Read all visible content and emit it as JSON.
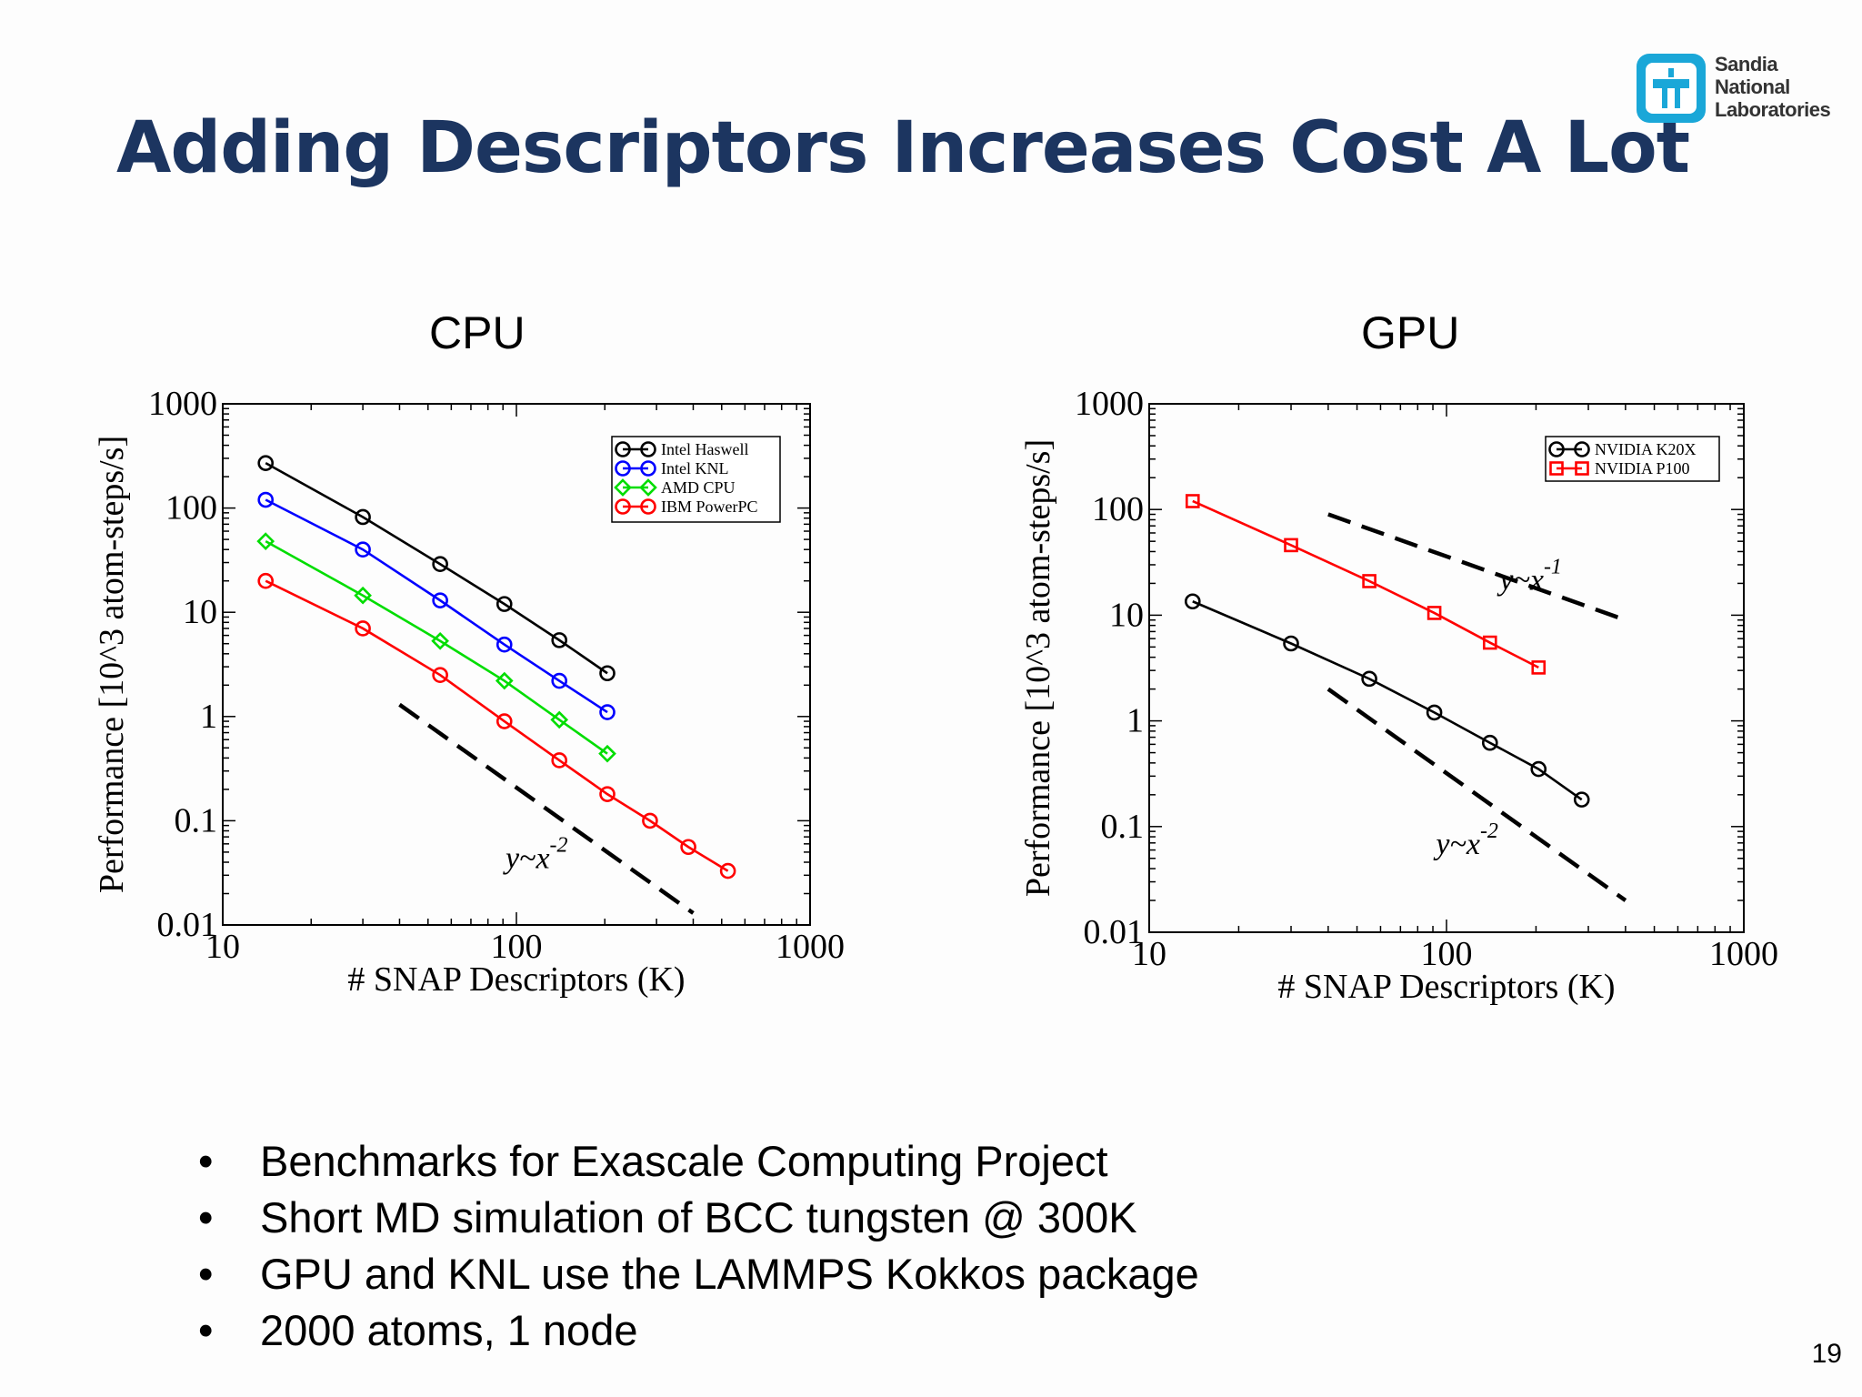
{
  "slide": {
    "title": "Adding Descriptors Increases Cost A Lot",
    "logo": {
      "lines": [
        "Sandia",
        "National",
        "Laboratories"
      ],
      "icon": "sandia-thunderbird-icon",
      "color": "#1aa7d8"
    },
    "page_number": "19",
    "bullets": [
      "Benchmarks for Exascale Computing Project",
      "Short MD simulation of BCC tungsten @ 300K",
      "GPU and KNL use the LAMMPS Kokkos package",
      "2000 atoms, 1 node"
    ]
  },
  "chart_data": [
    {
      "type": "line",
      "panel_title": "CPU",
      "xlabel": "# SNAP Descriptors (K)",
      "ylabel": "Performance [10^3 atom-steps/s]",
      "xscale": "log",
      "yscale": "log",
      "xlim": [
        10,
        1000
      ],
      "ylim": [
        0.01,
        1000
      ],
      "xticks": [
        "10",
        "100",
        "1000"
      ],
      "yticks": [
        "0.01",
        "0.1",
        "1",
        "10",
        "100",
        "1000"
      ],
      "legend_position": "top-right",
      "series": [
        {
          "name": "Intel Haswell",
          "color": "#000000",
          "marker": "circle",
          "x": [
            14,
            30,
            55,
            91,
            140,
            204
          ],
          "y": [
            270,
            82,
            29,
            12,
            5.4,
            2.6
          ]
        },
        {
          "name": "Intel KNL",
          "color": "#0000ff",
          "marker": "circle",
          "x": [
            14,
            30,
            55,
            91,
            140,
            204
          ],
          "y": [
            120,
            40,
            13,
            4.9,
            2.2,
            1.1
          ]
        },
        {
          "name": "AMD CPU",
          "color": "#00dd00",
          "marker": "diamond",
          "x": [
            14,
            30,
            55,
            91,
            140,
            204
          ],
          "y": [
            48,
            14.5,
            5.3,
            2.2,
            0.93,
            0.44
          ]
        },
        {
          "name": "IBM PowerPC",
          "color": "#ff0000",
          "marker": "circle",
          "x": [
            14,
            30,
            55,
            91,
            140,
            204,
            285,
            385,
            525
          ],
          "y": [
            20,
            7,
            2.5,
            0.9,
            0.38,
            0.18,
            0.1,
            0.056,
            0.033
          ]
        }
      ],
      "reference_lines": [
        {
          "label": "y~x",
          "exponent": "-2",
          "x": [
            40,
            400
          ],
          "y": [
            1.3,
            0.013
          ]
        }
      ]
    },
    {
      "type": "line",
      "panel_title": "GPU",
      "xlabel": "# SNAP Descriptors (K)",
      "ylabel": "Performance [10^3 atom-steps/s]",
      "xscale": "log",
      "yscale": "log",
      "xlim": [
        10,
        1000
      ],
      "ylim": [
        0.01,
        1000
      ],
      "xticks": [
        "10",
        "100",
        "1000"
      ],
      "yticks": [
        "0.01",
        "0.1",
        "1",
        "10",
        "100",
        "1000"
      ],
      "legend_position": "top-right",
      "series": [
        {
          "name": "NVIDIA K20X",
          "color": "#000000",
          "marker": "circle",
          "x": [
            14,
            30,
            55,
            91,
            140,
            204,
            285
          ],
          "y": [
            13.5,
            5.4,
            2.5,
            1.2,
            0.62,
            0.35,
            0.18
          ]
        },
        {
          "name": "NVIDIA P100",
          "color": "#ff0000",
          "marker": "square",
          "x": [
            14,
            30,
            55,
            91,
            140,
            204
          ],
          "y": [
            120,
            46,
            21,
            10.5,
            5.5,
            3.2
          ]
        }
      ],
      "reference_lines": [
        {
          "label": "y~x",
          "exponent": "-1",
          "x": [
            40,
            400
          ],
          "y": [
            90,
            9
          ]
        },
        {
          "label": "y~x",
          "exponent": "-2",
          "x": [
            40,
            400
          ],
          "y": [
            2,
            0.02
          ]
        }
      ]
    }
  ]
}
